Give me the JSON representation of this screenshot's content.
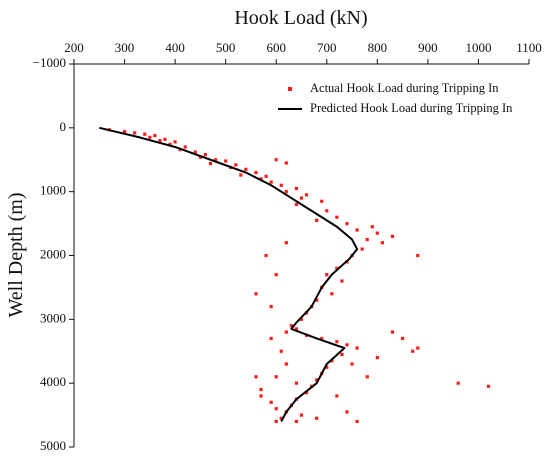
{
  "chart_data": {
    "type": "scatter",
    "x_title": "Hook Load (kN)",
    "y_title": "Well Depth (m)",
    "x_axis_position": "top",
    "y_inverted": true,
    "grid": false,
    "legend_position": "upper right",
    "xlim": [
      200,
      1100
    ],
    "xticks": [
      200,
      300,
      400,
      500,
      600,
      700,
      800,
      900,
      1000,
      1100
    ],
    "ylim": [
      -1000,
      5000
    ],
    "yticks": [
      {
        "value": -1000,
        "label": "−1000"
      },
      0,
      1000,
      2000,
      3000,
      4000,
      5000
    ],
    "series": [
      {
        "name": "Actual Hook Load during Tripping In",
        "type": "scatter",
        "color": "#ff1a1a",
        "x": [
          270,
          300,
          320,
          340,
          360,
          350,
          380,
          370,
          400,
          390,
          420,
          410,
          440,
          460,
          450,
          480,
          500,
          470,
          520,
          510,
          540,
          560,
          530,
          580,
          570,
          600,
          620,
          590,
          610,
          640,
          620,
          660,
          650,
          690,
          640,
          700,
          720,
          680,
          740,
          760,
          790,
          800,
          780,
          810,
          770,
          750,
          740,
          720,
          700,
          730,
          690,
          710,
          680,
          670,
          660,
          650,
          630,
          640,
          620,
          660,
          690,
          720,
          740,
          760,
          730,
          710,
          700,
          690,
          680,
          670,
          660,
          640,
          630,
          620,
          610,
          650,
          680,
          600,
          590,
          570,
          580,
          600,
          590,
          610,
          620,
          600,
          640,
          570,
          560,
          750,
          780,
          800,
          830,
          850,
          870,
          880,
          830,
          960,
          1020,
          880,
          560,
          590,
          620,
          760,
          740,
          720,
          600,
          640
        ],
        "values": [
          30,
          60,
          80,
          100,
          120,
          150,
          180,
          200,
          220,
          260,
          300,
          340,
          380,
          420,
          460,
          500,
          520,
          560,
          580,
          620,
          650,
          700,
          740,
          760,
          800,
          500,
          550,
          850,
          900,
          950,
          1000,
          1050,
          1100,
          1150,
          1200,
          1300,
          1400,
          1450,
          1500,
          1600,
          1550,
          1650,
          1750,
          1800,
          1900,
          2000,
          2100,
          2200,
          2300,
          2400,
          2500,
          2600,
          2700,
          2800,
          2900,
          3000,
          3100,
          3150,
          3200,
          3250,
          3300,
          3350,
          3400,
          3450,
          3550,
          3650,
          3750,
          3850,
          3950,
          4050,
          4150,
          4250,
          4350,
          4450,
          4550,
          4500,
          4550,
          4600,
          4300,
          4200,
          2000,
          2300,
          2800,
          3500,
          3700,
          3900,
          4000,
          4100,
          3900,
          3700,
          3900,
          3600,
          3200,
          3300,
          3500,
          2000,
          1700,
          4000,
          4050,
          3450,
          2600,
          3300,
          1800,
          4600,
          4450,
          4200,
          4400,
          4600
        ]
      },
      {
        "name": "Predicted Hook Load during Tripping In",
        "type": "line",
        "color": "#000000",
        "x": [
          250,
          330,
          400,
          470,
          540,
          590,
          630,
          680,
          720,
          750,
          760,
          745,
          710,
          690,
          670,
          640,
          630,
          680,
          735,
          700,
          680,
          640,
          620,
          610
        ],
        "values": [
          0,
          150,
          300,
          500,
          700,
          900,
          1100,
          1350,
          1550,
          1750,
          1900,
          2050,
          2300,
          2500,
          2800,
          3050,
          3150,
          3300,
          3450,
          3700,
          4000,
          4250,
          4450,
          4600
        ]
      }
    ]
  }
}
